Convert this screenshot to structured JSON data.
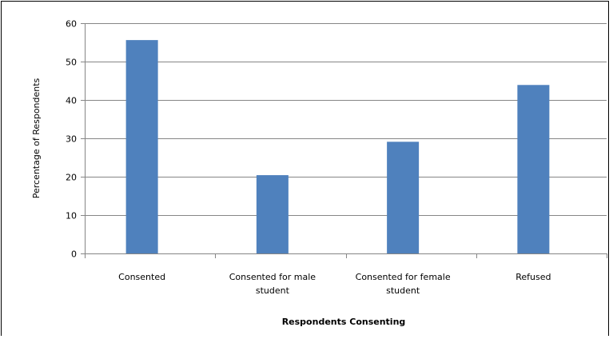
{
  "chart_data": {
    "type": "bar",
    "categories": [
      [
        "Consented"
      ],
      [
        "Consented for male",
        "student"
      ],
      [
        "Consented for female",
        "student"
      ],
      [
        "Refused"
      ]
    ],
    "values": [
      55.6,
      20.4,
      29.1,
      43.9
    ],
    "title": "",
    "xlabel": "Respondents Consenting",
    "ylabel": "Percentage of Respondents",
    "ylim": [
      0,
      60
    ],
    "yticks": [
      0,
      10,
      20,
      30,
      40,
      50,
      60
    ],
    "grid": true,
    "legend": "none",
    "bar_color": "#4f81bd",
    "grid_color": "#868686",
    "axis_color": "#868686"
  }
}
